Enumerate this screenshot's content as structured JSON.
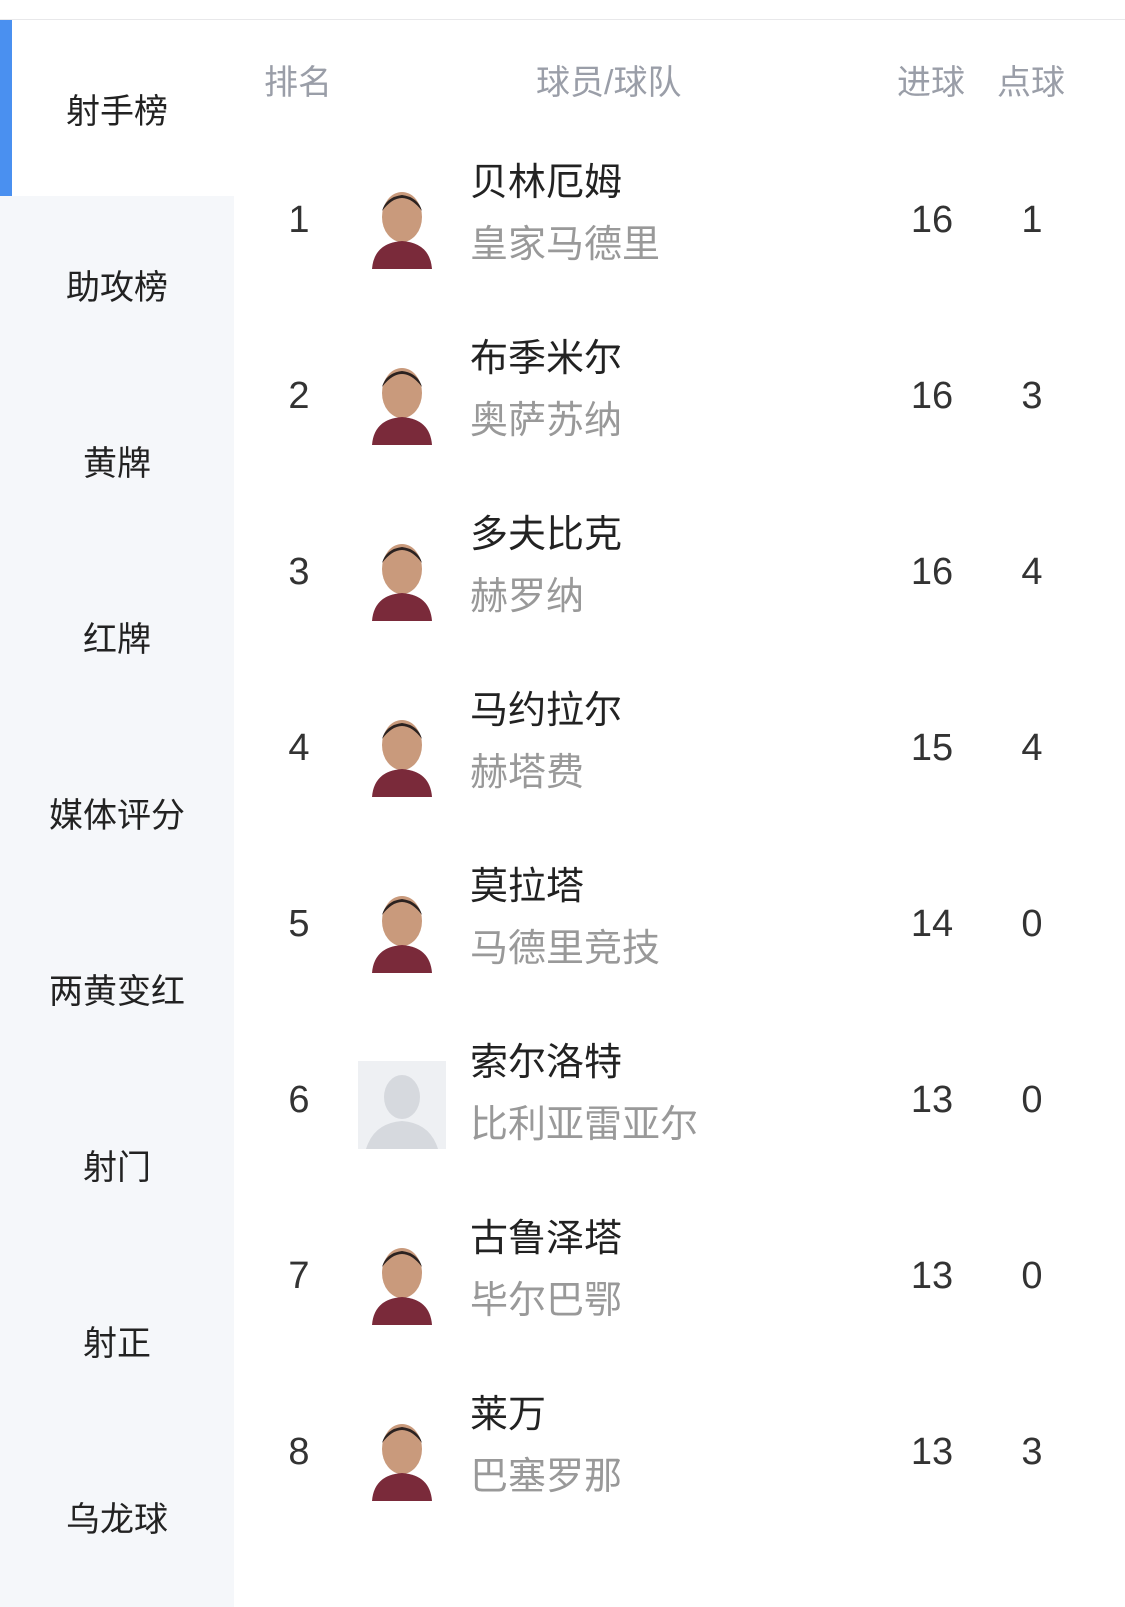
{
  "sidebar": {
    "items": [
      {
        "label": "射手榜",
        "active": true
      },
      {
        "label": "助攻榜"
      },
      {
        "label": "黄牌"
      },
      {
        "label": "红牌"
      },
      {
        "label": "媒体评分"
      },
      {
        "label": "两黄变红"
      },
      {
        "label": "射门"
      },
      {
        "label": "射正"
      },
      {
        "label": "乌龙球"
      }
    ],
    "accent_color": "#4a90f0"
  },
  "table": {
    "headers": {
      "rank": "排名",
      "player_team": "球员/球队",
      "goals": "进球",
      "penalties": "点球"
    },
    "rows": [
      {
        "rank": "1",
        "name": "贝林厄姆",
        "team": "皇家马德里",
        "goals": "16",
        "penalties": "1",
        "photo": "player-photo"
      },
      {
        "rank": "2",
        "name": "布季米尔",
        "team": "奥萨苏纳",
        "goals": "16",
        "penalties": "3",
        "photo": "player-photo"
      },
      {
        "rank": "3",
        "name": "多夫比克",
        "team": "赫罗纳",
        "goals": "16",
        "penalties": "4",
        "photo": "player-photo"
      },
      {
        "rank": "4",
        "name": "马约拉尔",
        "team": "赫塔费",
        "goals": "15",
        "penalties": "4",
        "photo": "player-photo"
      },
      {
        "rank": "5",
        "name": "莫拉塔",
        "team": "马德里竞技",
        "goals": "14",
        "penalties": "0",
        "photo": "player-photo"
      },
      {
        "rank": "6",
        "name": "索尔洛特",
        "team": "比利亚雷亚尔",
        "goals": "13",
        "penalties": "0",
        "photo": "placeholder-avatar"
      },
      {
        "rank": "7",
        "name": "古鲁泽塔",
        "team": "毕尔巴鄂",
        "goals": "13",
        "penalties": "0",
        "photo": "player-photo"
      },
      {
        "rank": "8",
        "name": "莱万",
        "team": "巴塞罗那",
        "goals": "13",
        "penalties": "3",
        "photo": "player-photo"
      }
    ]
  }
}
